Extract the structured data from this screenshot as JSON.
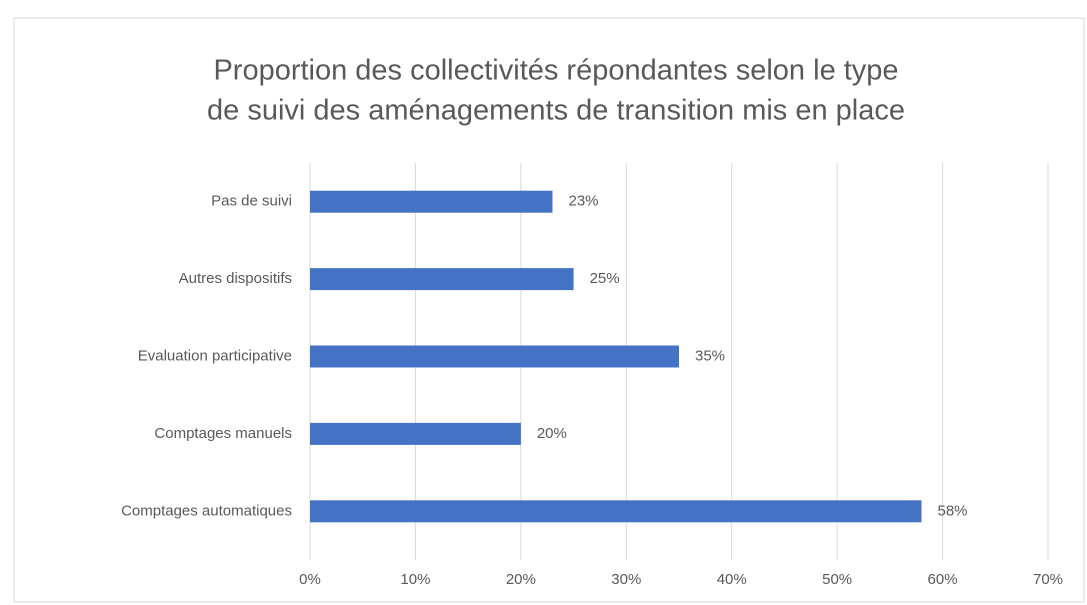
{
  "chart_data": {
    "type": "bar",
    "orientation": "horizontal",
    "title": [
      "Proportion des collectivités répondantes selon le type",
      "de suivi des aménagements de transition mis en place"
    ],
    "categories": [
      "Pas de suivi",
      "Autres dispositifs",
      "Evaluation participative",
      "Comptages manuels",
      "Comptages automatiques"
    ],
    "values": [
      23,
      25,
      35,
      20,
      58
    ],
    "value_labels": [
      "23%",
      "25%",
      "35%",
      "20%",
      "58%"
    ],
    "color": "#4472c4",
    "xlim": [
      0,
      70
    ],
    "xticks": [
      {
        "value": 0,
        "label": "0%"
      },
      {
        "value": 10,
        "label": "10%"
      },
      {
        "value": 20,
        "label": "20%"
      },
      {
        "value": 30,
        "label": "30%"
      },
      {
        "value": 40,
        "label": "40%"
      },
      {
        "value": 50,
        "label": "50%"
      },
      {
        "value": 60,
        "label": "60%"
      },
      {
        "value": 70,
        "label": "70%"
      }
    ],
    "grid": true
  }
}
